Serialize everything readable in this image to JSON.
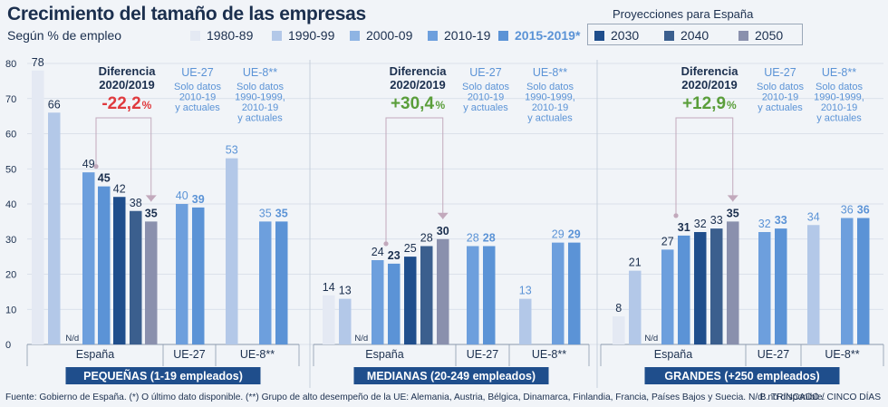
{
  "title": "Crecimiento del tamaño de las empresas",
  "subtitle": "Según % de empleo",
  "projections_label": "Proyecciones para España",
  "legend": [
    {
      "label": "1980-89",
      "color": "#e4e9f3"
    },
    {
      "label": "1990-99",
      "color": "#b3c8e8"
    },
    {
      "label": "2000-09",
      "color": "#8eb4e3"
    },
    {
      "label": "2010-19",
      "color": "#6d9fdd"
    },
    {
      "label": "2015-2019*",
      "color": "#5b93d6"
    },
    {
      "label": "2030",
      "color": "#1f4e8c"
    },
    {
      "label": "2040",
      "color": "#3b5f8e"
    },
    {
      "label": "2050",
      "color": "#8a90ad"
    }
  ],
  "footer": "Fuente: Gobierno de España. (*) O último dato disponible. (**) Grupo de alto desempeño de la UE: Alemania, Austria, Bélgica, Dinamarca, Finlandia, Francia, Países Bajos y Suecia. N/d: no disponible.",
  "credit": "B. TRINCADO / CINCO DÍAS",
  "colors": {
    "text": "#1b2f4e",
    "accent_blue": "#5b93d6",
    "negative": "#e03a3e",
    "positive": "#5a9e3a",
    "bar_title_bg": "#1f4e8c"
  },
  "chart_data": {
    "type": "bar",
    "ylim": [
      0,
      80
    ],
    "yticks": [
      0,
      10,
      20,
      30,
      40,
      50,
      60,
      70,
      80
    ],
    "series_order": [
      "1980-89",
      "1990-99",
      "2000-09",
      "2010-19",
      "2015-2019*",
      "2030",
      "2040",
      "2050"
    ],
    "panels": [
      {
        "name": "PEQUEÑAS (1-19 empleados)",
        "diff_label": "Diferencia 2020/2019",
        "diff_value": "-22,2",
        "diff_unit": "%",
        "diff_sign": "negative",
        "eu27_note": "Solo datos 2010-19 y actuales",
        "eu8_note": "Solo datos 1990-1999, 2010-19 y actuales",
        "groups": [
          {
            "name": "España",
            "bars": [
              {
                "series": "1980-89",
                "value": 78
              },
              {
                "series": "1990-99",
                "value": 66
              },
              {
                "series": "2000-09",
                "value": null,
                "label": "N/d"
              },
              {
                "series": "2010-19",
                "value": 49
              },
              {
                "series": "2015-2019*",
                "value": 45
              },
              {
                "series": "2030",
                "value": 42
              },
              {
                "series": "2040",
                "value": 38
              },
              {
                "series": "2050",
                "value": 35
              }
            ]
          },
          {
            "name": "UE-27",
            "bars": [
              {
                "series": "2010-19",
                "value": 40
              },
              {
                "series": "2015-2019*",
                "value": 39
              }
            ]
          },
          {
            "name": "UE-8**",
            "bars": [
              {
                "series": "1990-99",
                "value": 53
              },
              {
                "series": "2010-19",
                "value": 35
              },
              {
                "series": "2015-2019*",
                "value": 35
              }
            ]
          }
        ]
      },
      {
        "name": "MEDIANAS (20-249 empleados)",
        "diff_label": "Diferencia 2020/2019",
        "diff_value": "+30,4",
        "diff_unit": "%",
        "diff_sign": "positive",
        "eu27_note": "Solo datos 2010-19 y actuales",
        "eu8_note": "Solo datos 1990-1999, 2010-19 y actuales",
        "groups": [
          {
            "name": "España",
            "bars": [
              {
                "series": "1980-89",
                "value": 14
              },
              {
                "series": "1990-99",
                "value": 13
              },
              {
                "series": "2000-09",
                "value": null,
                "label": "N/d"
              },
              {
                "series": "2010-19",
                "value": 24
              },
              {
                "series": "2015-2019*",
                "value": 23
              },
              {
                "series": "2030",
                "value": 25
              },
              {
                "series": "2040",
                "value": 28
              },
              {
                "series": "2050",
                "value": 30
              }
            ]
          },
          {
            "name": "UE-27",
            "bars": [
              {
                "series": "2010-19",
                "value": 28
              },
              {
                "series": "2015-2019*",
                "value": 28
              }
            ]
          },
          {
            "name": "UE-8**",
            "bars": [
              {
                "series": "1990-99",
                "value": 13
              },
              {
                "series": "2010-19",
                "value": 29
              },
              {
                "series": "2015-2019*",
                "value": 29
              }
            ]
          }
        ]
      },
      {
        "name": "GRANDES (+250 empleados)",
        "diff_label": "Diferencia 2020/2019",
        "diff_value": "+12,9",
        "diff_unit": "%",
        "diff_sign": "positive",
        "eu27_note": "Solo datos 2010-19 y actuales",
        "eu8_note": "Solo datos 1990-1999, 2010-19 y actuales",
        "groups": [
          {
            "name": "España",
            "bars": [
              {
                "series": "1980-89",
                "value": 8
              },
              {
                "series": "1990-99",
                "value": 21
              },
              {
                "series": "2000-09",
                "value": null,
                "label": "N/d"
              },
              {
                "series": "2010-19",
                "value": 27
              },
              {
                "series": "2015-2019*",
                "value": 31
              },
              {
                "series": "2030",
                "value": 32
              },
              {
                "series": "2040",
                "value": 33
              },
              {
                "series": "2050",
                "value": 35
              }
            ]
          },
          {
            "name": "UE-27",
            "bars": [
              {
                "series": "2010-19",
                "value": 32
              },
              {
                "series": "2015-2019*",
                "value": 33
              }
            ]
          },
          {
            "name": "UE-8**",
            "bars": [
              {
                "series": "1990-99",
                "value": 34
              },
              {
                "series": "2010-19",
                "value": 36
              },
              {
                "series": "2015-2019*",
                "value": 36
              }
            ]
          }
        ]
      }
    ]
  }
}
